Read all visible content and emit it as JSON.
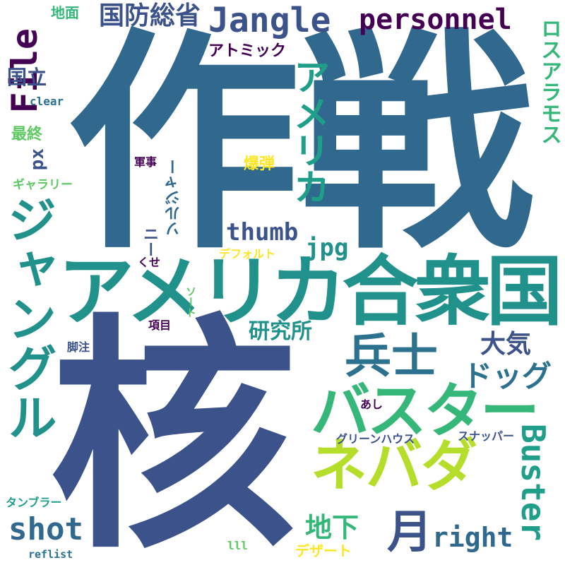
{
  "words": {
    "sakusen": "作戦",
    "kaku": "核",
    "america_gasshukoku": "アメリカ合衆国",
    "jangle_jp": "ジャングル",
    "buster_jp": "バスター",
    "nevada": "ネバダ",
    "heishi": "兵士",
    "tsuki": "月",
    "america": "アメリカ",
    "buster": "Buster",
    "jangle": "Jangle",
    "file": "File",
    "personnel": "personnel",
    "kokubou": "国防総省",
    "thumb": "thumb",
    "dog": "ドッグ",
    "taiki": "大気",
    "kenkyujo": "研究所",
    "shot": "shot",
    "right": "right",
    "chika": "地下",
    "jpg": "jpg",
    "atomic": "アトミック",
    "losalamos": "ロスアラモス",
    "kokuritsu": "国立",
    "saishu": "最終",
    "px": "px",
    "bakudan": "爆弾",
    "jimen": "地面",
    "clear": "clear",
    "gallery": "ギャラリー",
    "gunji": "軍事",
    "nii": "ニー",
    "jungle_katakana": "ソルジャー",
    "default": "デフォルト",
    "kuse": "くせ",
    "koumoku": "項目",
    "kyakuchu": "脚注",
    "sort": "ソート",
    "ashi": "あし",
    "greenhouse": "グリーンハウス",
    "snapper": "スナッパー",
    "tumbler": "タンブラー",
    "reflist": "reflist",
    "lll": "lll",
    "dessert": "デザート"
  },
  "colors": {
    "dark_purple": "#440154",
    "indigo": "#3b528b",
    "steel_blue": "#31688e",
    "teal_blue": "#2c728e",
    "teal": "#21918c",
    "jade": "#1f9e89",
    "green_teal": "#35b779",
    "green": "#5ec962",
    "lime": "#90d743",
    "yellow_green": "#b5de2b",
    "yellow": "#fde725"
  }
}
